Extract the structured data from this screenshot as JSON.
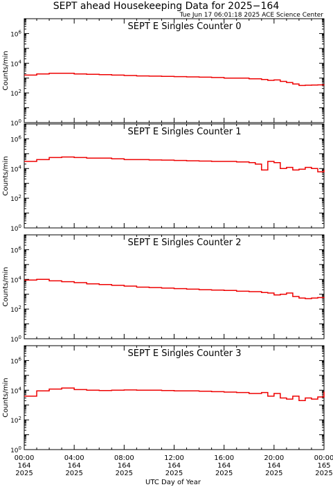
{
  "title": "SEPT ahead Housekeeping Data for 2025−164",
  "timestamp": "Tue Jun 17 06:01:18 2025 ACE Science Center",
  "xlabel": "UTC Day of Year",
  "colors": {
    "trace": "#ee0000",
    "panel_title": "#1a1aff",
    "frame": "#000000"
  },
  "x_ticks": [
    {
      "h": 0,
      "time": "00:00",
      "doy": "164",
      "year": "2025"
    },
    {
      "h": 4,
      "time": "04:00",
      "doy": "164",
      "year": "2025"
    },
    {
      "h": 8,
      "time": "08:00",
      "doy": "164",
      "year": "2025"
    },
    {
      "h": 12,
      "time": "12:00",
      "doy": "164",
      "year": "2025"
    },
    {
      "h": 16,
      "time": "16:00",
      "doy": "164",
      "year": "2025"
    },
    {
      "h": 20,
      "time": "20:00",
      "doy": "164",
      "year": "2025"
    },
    {
      "h": 24,
      "time": "00:00",
      "doy": "165",
      "year": "2025"
    }
  ],
  "chart_data": [
    {
      "type": "line",
      "title": "SEPT E Singles Counter 0",
      "ylabel": "Counts/min",
      "y_scale": "log",
      "ylim": [
        1,
        10000000
      ],
      "y_ticks": [
        {
          "v": 1,
          "label": "10^0"
        },
        {
          "v": 100,
          "label": "10^2"
        },
        {
          "v": 10000,
          "label": "10^4"
        },
        {
          "v": 1000000,
          "label": "10^6"
        }
      ],
      "series": [
        {
          "x": [
            0,
            1,
            2,
            3,
            4,
            5,
            6,
            7,
            8,
            9,
            10,
            11,
            12,
            13,
            14,
            15,
            16,
            17,
            18,
            19,
            19.5,
            20,
            20.5,
            21,
            21.5,
            22,
            22.5,
            23,
            23.5,
            24
          ],
          "y": [
            1600,
            1900,
            2100,
            2100,
            1900,
            1800,
            1700,
            1600,
            1500,
            1400,
            1350,
            1300,
            1250,
            1200,
            1150,
            1100,
            1000,
            1000,
            900,
            800,
            700,
            750,
            600,
            500,
            400,
            320,
            330,
            340,
            350,
            380
          ]
        }
      ]
    },
    {
      "type": "line",
      "title": "SEPT E Singles Counter 1",
      "ylabel": "Counts/min",
      "y_scale": "log",
      "ylim": [
        1,
        10000000
      ],
      "y_ticks": [
        {
          "v": 1,
          "label": "10^0"
        },
        {
          "v": 100,
          "label": "10^2"
        },
        {
          "v": 10000,
          "label": "10^4"
        },
        {
          "v": 1000000,
          "label": "10^6"
        }
      ],
      "series": [
        {
          "x": [
            0,
            1,
            2,
            3,
            4,
            5,
            6,
            7,
            8,
            9,
            10,
            11,
            12,
            13,
            14,
            15,
            16,
            17,
            18,
            18.5,
            19,
            19.5,
            20,
            20.5,
            21,
            21.5,
            22,
            22.5,
            23,
            23.5,
            24
          ],
          "y": [
            30000,
            40000,
            55000,
            60000,
            55000,
            50000,
            50000,
            45000,
            40000,
            40000,
            38000,
            37000,
            35000,
            33000,
            32000,
            30000,
            30000,
            28000,
            25000,
            20000,
            8000,
            30000,
            25000,
            10000,
            12000,
            8000,
            9000,
            12000,
            10000,
            6000,
            8000
          ]
        }
      ]
    },
    {
      "type": "line",
      "title": "SEPT E Singles Counter 2",
      "ylabel": "Counts/min",
      "y_scale": "log",
      "ylim": [
        1,
        10000000
      ],
      "y_ticks": [
        {
          "v": 1,
          "label": "10^0"
        },
        {
          "v": 100,
          "label": "10^2"
        },
        {
          "v": 10000,
          "label": "10^4"
        },
        {
          "v": 1000000,
          "label": "10^6"
        }
      ],
      "series": [
        {
          "x": [
            0,
            1,
            2,
            3,
            4,
            5,
            6,
            7,
            8,
            9,
            10,
            11,
            12,
            13,
            14,
            15,
            16,
            17,
            18,
            19,
            19.5,
            20,
            20.5,
            21,
            21.5,
            22,
            22.5,
            23,
            23.5,
            24
          ],
          "y": [
            9000,
            10000,
            8000,
            7000,
            6000,
            5000,
            4500,
            4000,
            3500,
            3000,
            2800,
            2600,
            2400,
            2200,
            2000,
            1900,
            1800,
            1600,
            1500,
            1300,
            1200,
            900,
            1000,
            1200,
            700,
            550,
            500,
            550,
            600,
            650
          ]
        }
      ]
    },
    {
      "type": "line",
      "title": "SEPT E Singles Counter 3",
      "ylabel": "Counts/min",
      "y_scale": "log",
      "ylim": [
        1,
        10000000
      ],
      "y_ticks": [
        {
          "v": 1,
          "label": "10^0"
        },
        {
          "v": 100,
          "label": "10^2"
        },
        {
          "v": 10000,
          "label": "10^4"
        },
        {
          "v": 1000000,
          "label": "10^6"
        }
      ],
      "series": [
        {
          "x": [
            0,
            1,
            2,
            3,
            4,
            5,
            6,
            7,
            8,
            9,
            10,
            11,
            12,
            13,
            14,
            15,
            16,
            17,
            18,
            19,
            19.5,
            20,
            20.5,
            21,
            21.5,
            22,
            22.5,
            23,
            23.5,
            24
          ],
          "y": [
            4000,
            9000,
            12000,
            14000,
            11000,
            10000,
            9500,
            10000,
            10500,
            10000,
            10000,
            9500,
            9000,
            9000,
            8500,
            8000,
            7500,
            7000,
            6000,
            7000,
            4000,
            6000,
            3000,
            2500,
            4000,
            2000,
            3000,
            2500,
            3500,
            8000
          ]
        }
      ]
    }
  ]
}
